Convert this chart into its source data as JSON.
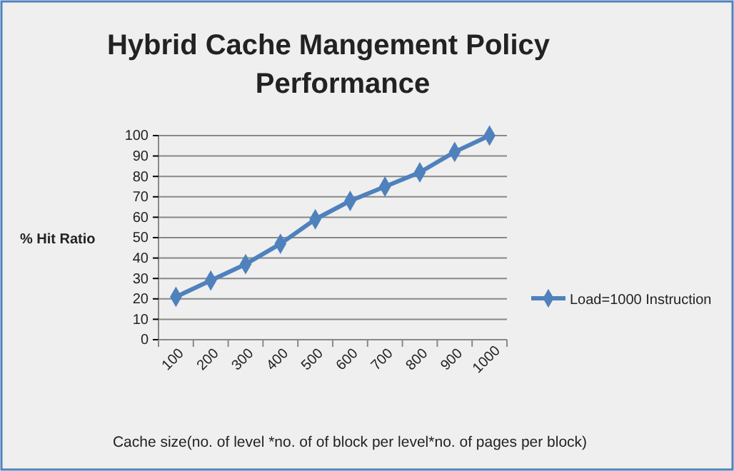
{
  "chart_data": {
    "type": "line",
    "title": "Hybrid Cache Mangement Policy Performance",
    "xlabel": "Cache size(no. of level *no. of of block per level*no. of pages per block)",
    "ylabel": "% Hit Ratio",
    "categories": [
      "100",
      "200",
      "300",
      "400",
      "500",
      "600",
      "700",
      "800",
      "900",
      "1000"
    ],
    "series": [
      {
        "name": "Load=1000 Instruction",
        "color": "#4f81bd",
        "values": [
          21,
          29,
          37,
          47,
          59,
          68,
          75,
          82,
          92,
          100
        ]
      }
    ],
    "ylim": [
      0,
      100
    ],
    "yticks": [
      0,
      10,
      20,
      30,
      40,
      50,
      60,
      70,
      80,
      90,
      100
    ],
    "grid": "y",
    "legend": "right",
    "marker": "diamond",
    "line_style": "solid"
  }
}
